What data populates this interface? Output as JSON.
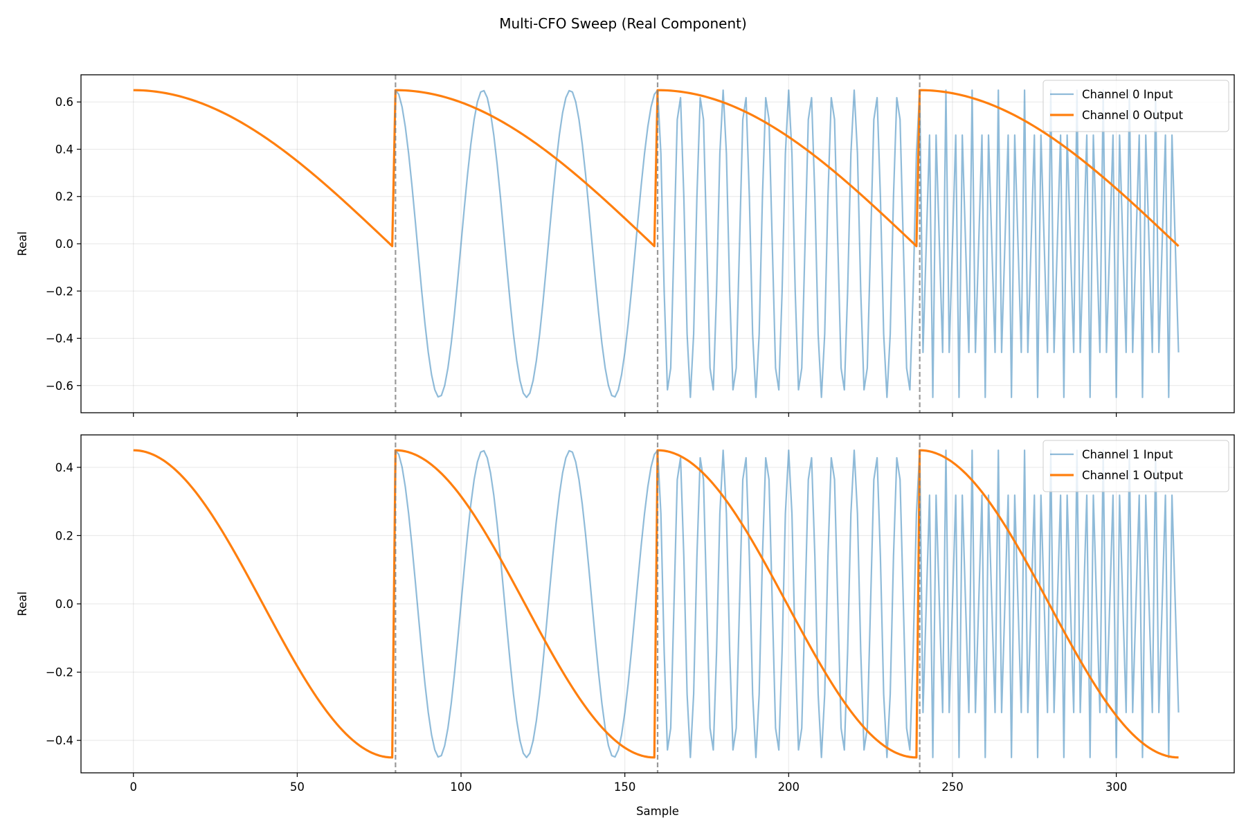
{
  "chart_data": {
    "type": "line",
    "title": "Multi-CFO Sweep (Real Component)",
    "xlabel": "Sample",
    "xlim": [
      -16,
      336
    ],
    "xticks": [
      0,
      50,
      100,
      150,
      200,
      250,
      300
    ],
    "segment_boundaries": [
      80,
      160,
      240
    ],
    "grid": true,
    "colors": {
      "input": "#1f77b4",
      "output": "#ff7f0e",
      "boundary": "#808080"
    },
    "subplots": [
      {
        "ylabel": "Real",
        "ylim": [
          -0.715,
          0.715
        ],
        "yticks": [
          -0.6,
          -0.4,
          -0.2,
          0.0,
          0.2,
          0.4,
          0.6
        ],
        "amplitude": 0.65,
        "legend_position": "upper right",
        "series": [
          {
            "name": "Channel 0 Input",
            "role": "input",
            "segments": [
              {
                "x_start": 80,
                "x_end": 159,
                "cycles": 3
              },
              {
                "x_start": 160,
                "x_end": 239,
                "cycles": 12
              },
              {
                "x_start": 240,
                "x_end": 319,
                "cycles": 30
              }
            ]
          },
          {
            "name": "Channel 0 Output",
            "role": "output",
            "segments": [
              {
                "x_start": 0,
                "x_end": 79,
                "y_start": 0.65,
                "y_end": -0.01,
                "shape": "quarter-cosine"
              },
              {
                "x_start": 80,
                "x_end": 159,
                "y_start": 0.65,
                "y_end": -0.01,
                "shape": "quarter-cosine"
              },
              {
                "x_start": 160,
                "x_end": 239,
                "y_start": 0.65,
                "y_end": -0.01,
                "shape": "quarter-cosine"
              },
              {
                "x_start": 240,
                "x_end": 319,
                "y_start": 0.65,
                "y_end": -0.01,
                "shape": "quarter-cosine"
              }
            ]
          }
        ]
      },
      {
        "ylabel": "Real",
        "ylim": [
          -0.495,
          0.495
        ],
        "yticks": [
          -0.4,
          -0.2,
          0.0,
          0.2,
          0.4
        ],
        "amplitude": 0.45,
        "legend_position": "upper right",
        "series": [
          {
            "name": "Channel 1 Input",
            "role": "input",
            "segments": [
              {
                "x_start": 80,
                "x_end": 159,
                "cycles": 3
              },
              {
                "x_start": 160,
                "x_end": 239,
                "cycles": 12
              },
              {
                "x_start": 240,
                "x_end": 319,
                "cycles": 30
              }
            ]
          },
          {
            "name": "Channel 1 Output",
            "role": "output",
            "segments": [
              {
                "x_start": 0,
                "x_end": 79,
                "y_start": 0.45,
                "y_end": -0.45,
                "shape": "half-cosine"
              },
              {
                "x_start": 80,
                "x_end": 159,
                "y_start": 0.45,
                "y_end": -0.45,
                "shape": "half-cosine"
              },
              {
                "x_start": 160,
                "x_end": 239,
                "y_start": 0.45,
                "y_end": -0.45,
                "shape": "half-cosine"
              },
              {
                "x_start": 240,
                "x_end": 319,
                "y_start": 0.45,
                "y_end": -0.45,
                "shape": "half-cosine"
              }
            ]
          }
        ]
      }
    ]
  }
}
